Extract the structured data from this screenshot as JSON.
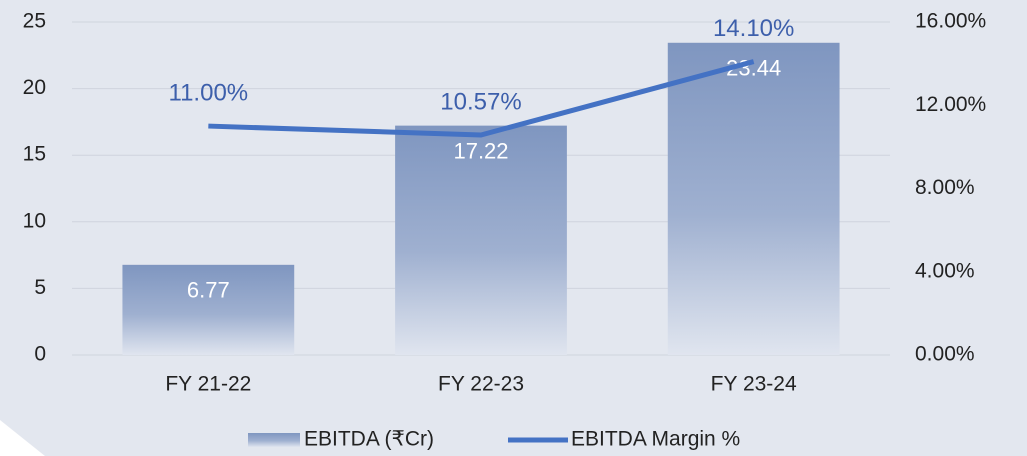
{
  "chart_data": {
    "type": "bar",
    "categories": [
      "FY 21-22",
      "FY 22-23",
      "FY 23-24"
    ],
    "series": [
      {
        "name": "EBITDA (₹Cr)",
        "type": "bar",
        "color": "#7f96c0",
        "values": [
          6.77,
          17.22,
          23.44
        ]
      },
      {
        "name": "EBITDA Margin %",
        "type": "line",
        "axis": "y2",
        "color": "#4472c4",
        "values": [
          11.0,
          10.57,
          14.1
        ],
        "value_labels": [
          "11.00%",
          "10.57%",
          "14.10%"
        ]
      }
    ],
    "ylim": [
      0,
      25
    ],
    "yticks": [
      0,
      5,
      10,
      15,
      20,
      25
    ],
    "y2lim": [
      0,
      16
    ],
    "y2ticks": [
      {
        "value": 0,
        "label": "0.00%"
      },
      {
        "value": 4,
        "label": "4.00%"
      },
      {
        "value": 8,
        "label": "8.00%"
      },
      {
        "value": 12,
        "label": "12.00%"
      },
      {
        "value": 16,
        "label": "16.00%"
      }
    ],
    "grid": true,
    "legend": "bottom"
  }
}
